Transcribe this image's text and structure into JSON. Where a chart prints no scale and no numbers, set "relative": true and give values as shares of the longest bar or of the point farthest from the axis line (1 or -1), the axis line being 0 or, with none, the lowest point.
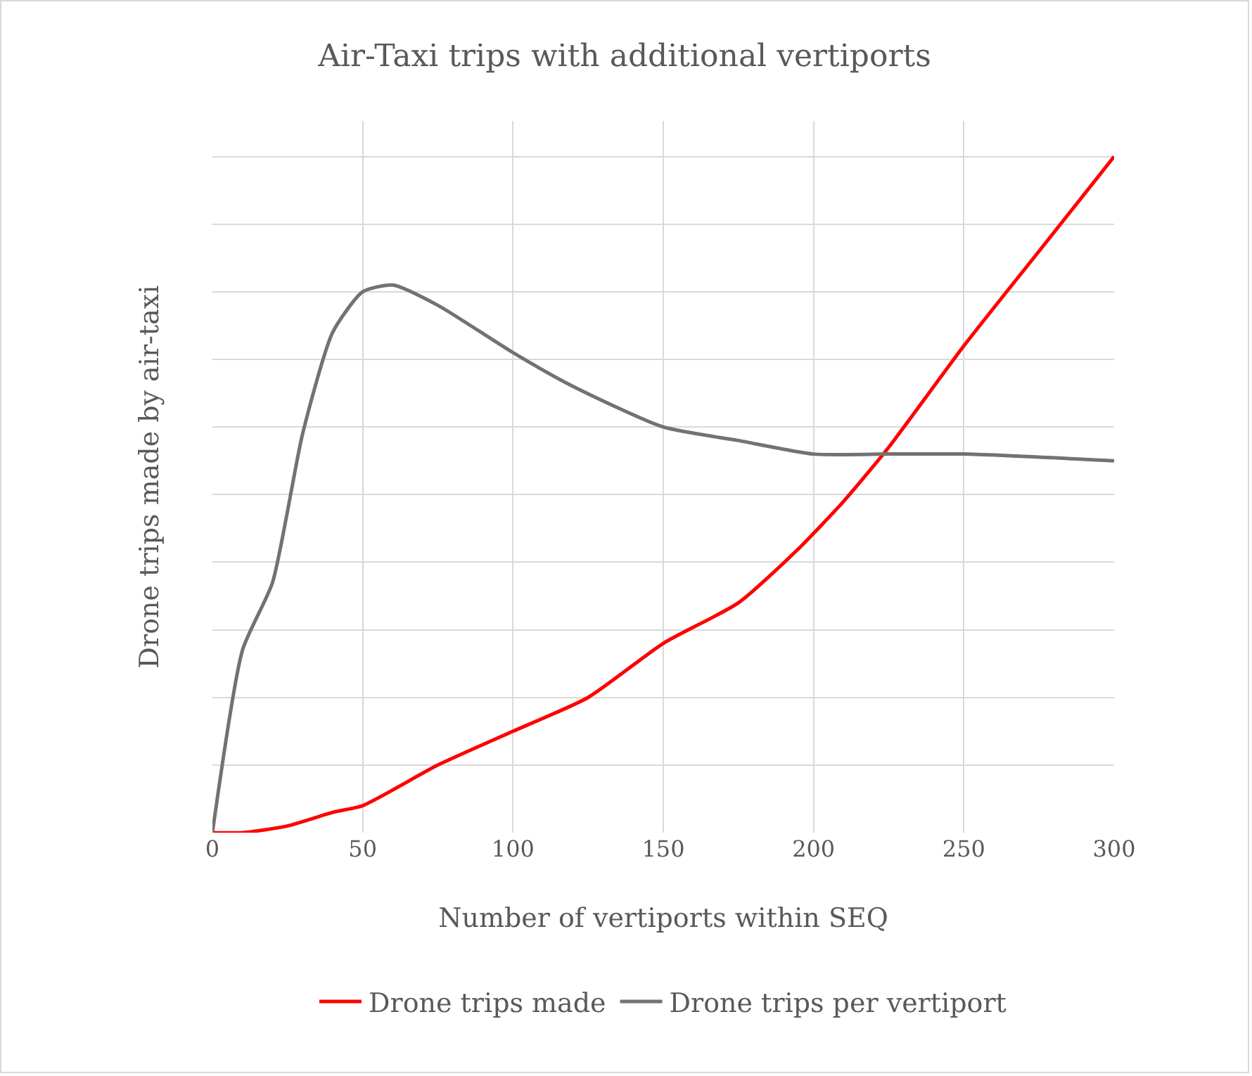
{
  "chart_data": {
    "type": "line",
    "title": "Air-Taxi trips with additional vertiports",
    "xlabel": "Number of vertiports within SEQ",
    "ylabel": "Drone trips made by air-taxi",
    "relative": true,
    "xlim": [
      0,
      300
    ],
    "xticks": [
      0,
      50,
      100,
      150,
      200,
      250,
      300
    ],
    "grid": true,
    "legend": "bottom",
    "marker": "none",
    "line_style": "solid",
    "series": [
      {
        "name": "Drone trips made",
        "color": "#ff0000",
        "x": [
          0,
          10,
          25,
          40,
          50,
          75,
          100,
          125,
          150,
          175,
          195,
          210,
          225,
          250,
          275,
          300
        ],
        "values": [
          0,
          0,
          0.01,
          0.03,
          0.04,
          0.1,
          0.15,
          0.2,
          0.28,
          0.34,
          0.42,
          0.49,
          0.57,
          0.72,
          0.86,
          1
        ]
      },
      {
        "name": "Drone trips per vertiport",
        "color": "#767171",
        "x": [
          0,
          10,
          20,
          30,
          40,
          50,
          60,
          75,
          100,
          120,
          150,
          175,
          200,
          225,
          250,
          300
        ],
        "values": [
          0,
          0.27,
          0.37,
          0.59,
          0.74,
          0.8,
          0.81,
          0.78,
          0.71,
          0.66,
          0.6,
          0.58,
          0.56,
          0.56,
          0.56,
          0.55
        ]
      }
    ]
  }
}
